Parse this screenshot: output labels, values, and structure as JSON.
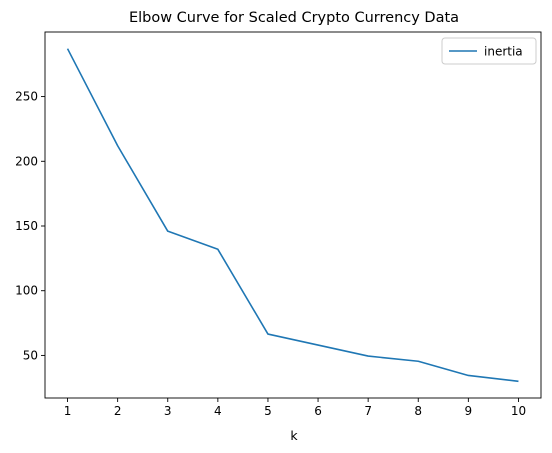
{
  "chart_data": {
    "type": "line",
    "title": "Elbow Curve for Scaled Crypto Currency Data",
    "xlabel": "k",
    "ylabel": "",
    "x": [
      1,
      2,
      3,
      4,
      5,
      6,
      7,
      8,
      9,
      10
    ],
    "series": [
      {
        "name": "inertia",
        "color": "#1f77b4",
        "values": [
          287.0,
          212.0,
          146.0,
          132.0,
          66.5,
          58.0,
          49.5,
          45.5,
          34.5,
          30.0
        ]
      }
    ],
    "xticks": [
      1,
      2,
      3,
      4,
      5,
      6,
      7,
      8,
      9,
      10
    ],
    "yticks": [
      50,
      100,
      150,
      200,
      250
    ],
    "xlim": [
      0.55,
      10.45
    ],
    "ylim": [
      17.1,
      299.9
    ],
    "grid": false,
    "legend": "top-right"
  }
}
